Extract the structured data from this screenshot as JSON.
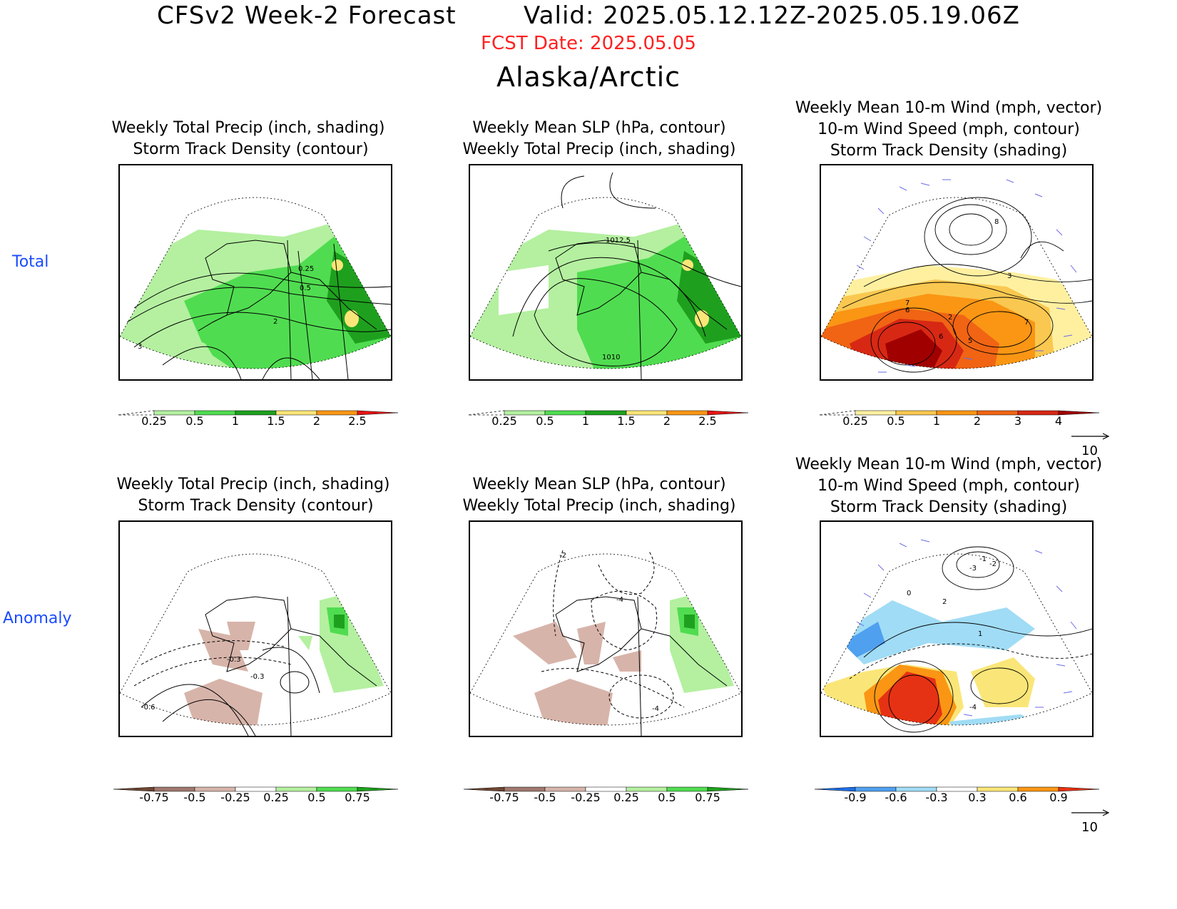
{
  "header": {
    "title": "CFSv2 Week-2 Forecast        Valid: 2025.05.12.12Z-2025.05.19.06Z",
    "fcst_date": "FCST Date: 2025.05.05",
    "region": "Alaska/Arctic"
  },
  "rows": {
    "total_label": "Total",
    "anomaly_label": "Anomaly"
  },
  "panels": {
    "total_precip": {
      "title": "Weekly Total Precip (inch, shading)\n Storm Track Density (contour)",
      "contour_labels": [
        "0.25",
        "0.5",
        "2",
        "3"
      ]
    },
    "total_slp": {
      "title": "Weekly Mean SLP (hPa, contour)\nWeekly Total Precip (inch, shading)",
      "contour_labels": [
        "1012.5",
        "1010"
      ]
    },
    "total_wind": {
      "title": "Weekly Mean 10-m Wind (mph, vector)\n10-m Wind Speed (mph, contour)\nStorm Track Density (shading)",
      "contour_labels": [
        "7",
        "6",
        "2",
        "6",
        "5",
        "7",
        "3",
        "8"
      ],
      "vector_ref": "10"
    },
    "anom_precip": {
      "title": "Weekly Total Precip (inch, shading)\n Storm Track Density (contour)",
      "contour_labels": [
        "-0.3",
        "-0.3",
        "-0.6"
      ]
    },
    "anom_slp": {
      "title": "Weekly Mean SLP (hPa, contour)\nWeekly Total Precip (inch, shading)",
      "contour_labels": [
        "-2",
        "-4",
        "-4"
      ]
    },
    "anom_wind": {
      "title": "Weekly Mean 10-m Wind (mph, vector)\n10-m Wind Speed (mph, contour)\nStorm Track Density (shading)",
      "contour_labels": [
        "-1",
        "-2",
        "-3",
        "0",
        "2",
        "1",
        "-4"
      ],
      "vector_ref": "10"
    }
  },
  "colorbars": {
    "precip_total": {
      "ticks": [
        "0.25",
        "0.5",
        "1",
        "1.5",
        "2",
        "2.5"
      ],
      "colors": [
        "#b4f0a0",
        "#50dc50",
        "#1ea01e",
        "#fae678",
        "#fa9614",
        "#e61414"
      ]
    },
    "density_total": {
      "ticks": [
        "0.25",
        "0.5",
        "1",
        "2",
        "3",
        "4"
      ],
      "colors": [
        "#fff0a0",
        "#fac850",
        "#fa9614",
        "#f06414",
        "#d72814",
        "#a00000"
      ]
    },
    "precip_anom": {
      "ticks": [
        "-0.75",
        "-0.5",
        "-0.25",
        "0.25",
        "0.5",
        "0.75"
      ],
      "colors": [
        "#6e4632",
        "#a0786e",
        "#d7b4aa",
        "#ffffff",
        "#b4f0a0",
        "#50dc50",
        "#1ea01e"
      ]
    },
    "density_anom": {
      "ticks": [
        "-0.9",
        "-0.6",
        "-0.3",
        "0.3",
        "0.6",
        "0.9"
      ],
      "colors": [
        "#1e6ee6",
        "#50a0f0",
        "#a0dcf5",
        "#ffffff",
        "#fae678",
        "#fa9614",
        "#e63214"
      ]
    }
  },
  "colors": {
    "green_light": "#b4f0a0",
    "green_mid": "#50dc50",
    "green_dark": "#1ea01e",
    "yellow": "#fae678",
    "brown_light": "#d7b4aa",
    "blue_light": "#a0dcf5",
    "orange": "#fa9614",
    "red": "#d72814",
    "vector": "#6a6ae6"
  }
}
